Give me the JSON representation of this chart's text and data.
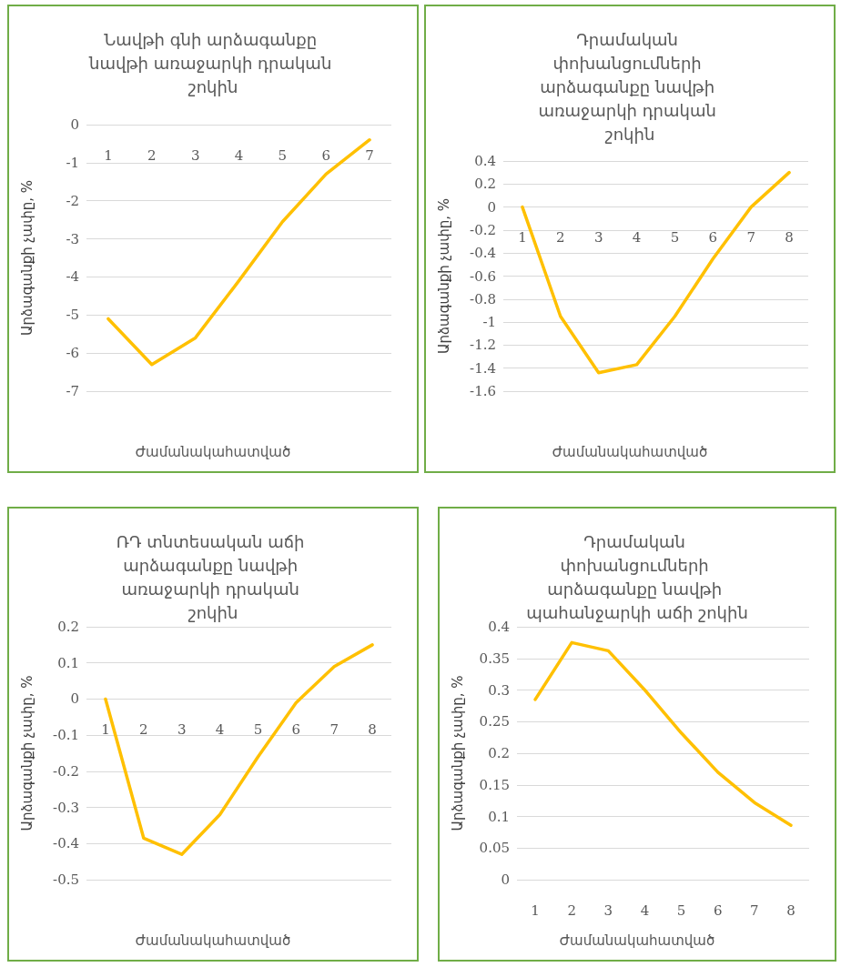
{
  "chart_data": [
    {
      "type": "line",
      "title": "Նավթի գնի արձագանքը նավթի առաջարկի դրական շոկին",
      "xlabel": "Ժամանակահատված",
      "ylabel": "Արձագանքի չափը, %",
      "categories": [
        "1",
        "2",
        "3",
        "4",
        "5",
        "6",
        "7"
      ],
      "series": [
        {
          "color": "#ffc000",
          "values": [
            -5.1,
            -6.3,
            -5.6,
            -4.1,
            -2.55,
            -1.3,
            -0.4
          ]
        }
      ],
      "ylim": [
        -7,
        0
      ],
      "yticks": [
        -7,
        -6,
        -5,
        -4,
        -3,
        -2,
        -1,
        0
      ],
      "grid": "y",
      "marker": "none",
      "line_style": "solid"
    },
    {
      "type": "line",
      "title": "Դրամական փոխանցումների արձագանքը նավթի առաջարկի դրական շոկին",
      "xlabel": "Ժամանակահատված",
      "ylabel": "Արձագանքի չափը, %",
      "categories": [
        "1",
        "2",
        "3",
        "4",
        "5",
        "6",
        "7",
        "8"
      ],
      "series": [
        {
          "color": "#ffc000",
          "values": [
            0,
            -0.95,
            -1.44,
            -1.37,
            -0.95,
            -0.45,
            0,
            0.3
          ]
        }
      ],
      "ylim": [
        -1.6,
        0.4
      ],
      "yticks": [
        -1.6,
        -1.4,
        -1.2,
        -1,
        -0.8,
        -0.6,
        -0.4,
        -0.2,
        0,
        0.2,
        0.4
      ],
      "grid": "y",
      "marker": "none",
      "line_style": "solid"
    },
    {
      "type": "line",
      "title": "ՌԴ տնտեսական աճի արձագանքը նավթի առաջարկի դրական շոկին",
      "xlabel": "Ժամանակահատված",
      "ylabel": "Արձագանքի չափը, %",
      "categories": [
        "1",
        "2",
        "3",
        "4",
        "5",
        "6",
        "7",
        "8"
      ],
      "series": [
        {
          "color": "#ffc000",
          "values": [
            0,
            -0.385,
            -0.43,
            -0.32,
            -0.16,
            -0.01,
            0.09,
            0.15
          ]
        }
      ],
      "ylim": [
        -0.5,
        0.2
      ],
      "yticks": [
        -0.5,
        -0.4,
        -0.3,
        -0.2,
        -0.1,
        0,
        0.1,
        0.2
      ],
      "grid": "y",
      "marker": "none",
      "line_style": "solid"
    },
    {
      "type": "line",
      "title": "Դրամական փոխանցումների արձագանքը նավթի պահանջարկի աճի շոկին",
      "xlabel": "Ժամանակահատված",
      "ylabel": "Արձագանքի չափը, %",
      "categories": [
        "1",
        "2",
        "3",
        "4",
        "5",
        "6",
        "7",
        "8"
      ],
      "series": [
        {
          "color": "#ffc000",
          "values": [
            0.285,
            0.375,
            0.362,
            0.3,
            0.232,
            0.17,
            0.122,
            0.086
          ]
        }
      ],
      "ylim": [
        0,
        0.4
      ],
      "yticks": [
        0,
        0.05,
        0.1,
        0.15,
        0.2,
        0.25,
        0.3,
        0.35,
        0.4
      ],
      "grid": "y",
      "marker": "none",
      "line_style": "solid"
    }
  ]
}
